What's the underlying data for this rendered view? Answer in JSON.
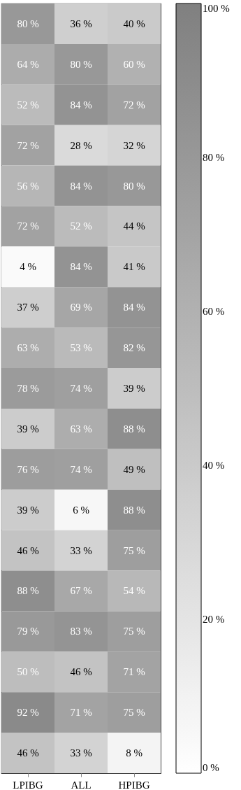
{
  "chart_data": {
    "type": "heatmap",
    "categories": [
      "LPIBG",
      "ALL",
      "HPIBG"
    ],
    "y_categories": [
      null,
      null,
      null,
      null,
      null,
      null,
      null,
      null,
      null,
      null,
      null,
      null,
      null,
      null,
      null,
      null,
      null,
      null,
      null
    ],
    "cells": [
      [
        80,
        36,
        40
      ],
      [
        64,
        80,
        60
      ],
      [
        52,
        84,
        72
      ],
      [
        72,
        28,
        32
      ],
      [
        56,
        84,
        80
      ],
      [
        72,
        52,
        44
      ],
      [
        4,
        84,
        41
      ],
      [
        37,
        69,
        84
      ],
      [
        63,
        53,
        82
      ],
      [
        78,
        74,
        39
      ],
      [
        39,
        63,
        88
      ],
      [
        76,
        74,
        49
      ],
      [
        39,
        6,
        88
      ],
      [
        46,
        33,
        75
      ],
      [
        88,
        67,
        54
      ],
      [
        79,
        83,
        75
      ],
      [
        50,
        46,
        71
      ],
      [
        92,
        71,
        75
      ],
      [
        46,
        33,
        8
      ]
    ],
    "cell_labels": [
      [
        "80 %",
        "36 %",
        "40 %"
      ],
      [
        "64 %",
        "80 %",
        "60 %"
      ],
      [
        "52 %",
        "84 %",
        "72 %"
      ],
      [
        "72 %",
        "28 %",
        "32 %"
      ],
      [
        "56 %",
        "84 %",
        "80 %"
      ],
      [
        "72 %",
        "52 %",
        "44 %"
      ],
      [
        "4 %",
        "84 %",
        "41 %"
      ],
      [
        "37 %",
        "69 %",
        "84 %"
      ],
      [
        "63 %",
        "53 %",
        "82 %"
      ],
      [
        "78 %",
        "74 %",
        "39 %"
      ],
      [
        "39 %",
        "63 %",
        "88 %"
      ],
      [
        "76 %",
        "74 %",
        "49 %"
      ],
      [
        "39 %",
        "6 %",
        "88 %"
      ],
      [
        "46 %",
        "33 %",
        "75 %"
      ],
      [
        "88 %",
        "67 %",
        "54 %"
      ],
      [
        "79 %",
        "83 %",
        "75 %"
      ],
      [
        "50 %",
        "46 %",
        "71 %"
      ],
      [
        "92 %",
        "71 %",
        "75 %"
      ],
      [
        "46 %",
        "33 %",
        "8 %"
      ]
    ],
    "clim": [
      0,
      100
    ],
    "cticks": [
      {
        "value": 0,
        "label": "0 %"
      },
      {
        "value": 20,
        "label": "20 %"
      },
      {
        "value": 40,
        "label": "40 %"
      },
      {
        "value": 60,
        "label": "60 %"
      },
      {
        "value": 80,
        "label": "80 %"
      },
      {
        "value": 100,
        "label": "100 %"
      }
    ],
    "tick_labels": "x"
  }
}
